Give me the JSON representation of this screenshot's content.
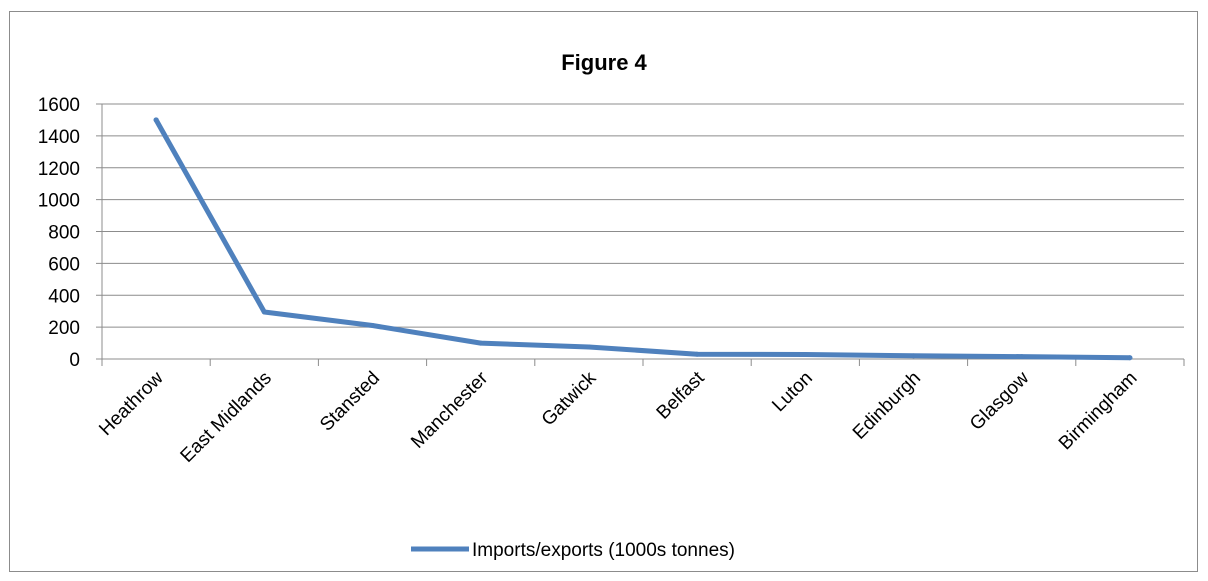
{
  "chart_data": {
    "type": "line",
    "title": "Figure 4",
    "categories": [
      "Heathrow",
      "East Midlands",
      "Stansted",
      "Manchester",
      "Gatwick",
      "Belfast",
      "Luton",
      "Edinburgh",
      "Glasgow",
      "Birmingham"
    ],
    "series": [
      {
        "name": "Imports/exports (1000s tonnes)",
        "values": [
          1500,
          295,
          210,
          100,
          75,
          30,
          28,
          20,
          15,
          8
        ],
        "color": "#4f81bd"
      }
    ],
    "ylim": [
      0,
      1600
    ],
    "yticks": [
      "0",
      "200",
      "400",
      "600",
      "800",
      "1000",
      "1200",
      "1400",
      "1600"
    ],
    "grid": true,
    "legend_position": "bottom"
  }
}
